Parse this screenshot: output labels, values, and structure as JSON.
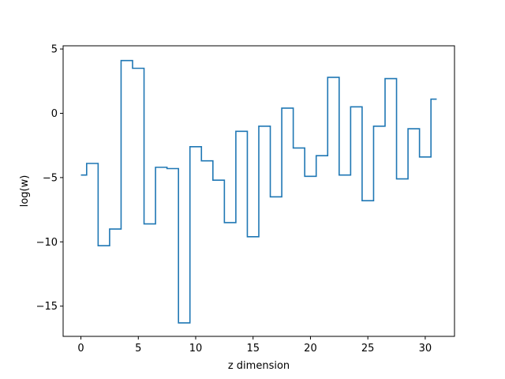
{
  "chart_data": {
    "type": "line",
    "drawstyle": "steps-mid",
    "xlabel": "z dimension",
    "ylabel": "log(w)",
    "xlim": [
      -1.55,
      32.55
    ],
    "ylim": [
      -17.35,
      5.25
    ],
    "xticks": [
      0,
      5,
      10,
      15,
      20,
      25,
      30
    ],
    "yticks": [
      -15,
      -10,
      -5,
      0,
      5
    ],
    "xtick_labels": [
      "0",
      "5",
      "10",
      "15",
      "20",
      "25",
      "30"
    ],
    "ytick_labels": [
      "−15",
      "−10",
      "−5",
      "0",
      "5"
    ],
    "grid": false,
    "line_color": "#1f77b4",
    "series": [
      {
        "x": [
          0,
          1,
          2,
          3,
          4,
          5,
          6,
          7,
          8,
          9,
          10,
          11,
          12,
          13,
          14,
          15,
          16,
          17,
          18,
          19,
          20,
          21,
          22,
          23,
          24,
          25,
          26,
          27,
          28,
          29,
          30,
          31
        ],
        "values": [
          -4.8,
          -3.9,
          -10.3,
          -9.0,
          4.1,
          3.5,
          -8.6,
          -4.2,
          -4.3,
          -16.3,
          -2.6,
          -3.7,
          -5.2,
          -8.5,
          -1.4,
          -9.6,
          -1.0,
          -6.5,
          0.4,
          -2.7,
          -4.9,
          -3.3,
          2.8,
          -4.8,
          0.5,
          -6.8,
          -1.0,
          2.7,
          -5.1,
          -1.2,
          -3.4,
          1.1
        ]
      }
    ]
  }
}
